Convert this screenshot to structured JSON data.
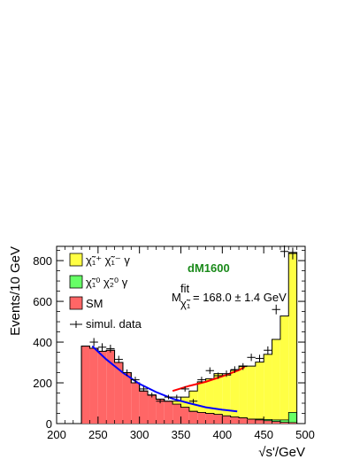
{
  "chart_data": {
    "type": "histogram",
    "xlabel": "√s'/GeV",
    "ylabel": "Events/10 GeV",
    "xlim": [
      200,
      500
    ],
    "ylim": [
      0,
      870
    ],
    "x_ticks": [
      200,
      250,
      300,
      350,
      400,
      450,
      500
    ],
    "y_ticks": [
      0,
      200,
      400,
      600,
      800
    ],
    "bin_width": 10,
    "bin_edges_start": 200,
    "series": [
      {
        "name": "SM",
        "key": "sm",
        "color": "#ff6666",
        "values": [
          0,
          0,
          0,
          380,
          370,
          355,
          360,
          300,
          250,
          200,
          160,
          140,
          120,
          110,
          95,
          80,
          60,
          55,
          50,
          45,
          38,
          32,
          28,
          22,
          18,
          14,
          10,
          6,
          5,
          0
        ]
      },
      {
        "name": "χ̃₁⁰ χ̃₂⁰ γ",
        "key": "chi12",
        "color": "#66ff66",
        "values": [
          0,
          0,
          0,
          0,
          0,
          0,
          0,
          0,
          0,
          0,
          0,
          0,
          0,
          0,
          0,
          0,
          0,
          0,
          0,
          0,
          0,
          0,
          0,
          0,
          4,
          6,
          8,
          12,
          50,
          0
        ]
      },
      {
        "name": "χ̃₁⁺ χ̃₁⁻ γ",
        "key": "chipm",
        "color": "#ffff44",
        "values": [
          0,
          0,
          0,
          0,
          0,
          0,
          0,
          0,
          0,
          0,
          0,
          0,
          0,
          0,
          15,
          50,
          100,
          150,
          170,
          200,
          200,
          230,
          255,
          260,
          280,
          320,
          395,
          510,
          785,
          0
        ]
      }
    ],
    "data_points": {
      "name": "simul. data",
      "x": [
        245,
        255,
        265,
        275,
        285,
        295,
        305,
        315,
        325,
        335,
        345,
        355,
        365,
        375,
        385,
        395,
        405,
        415,
        425,
        435,
        445,
        455,
        465,
        475,
        485
      ],
      "y": [
        400,
        375,
        368,
        315,
        250,
        215,
        170,
        140,
        110,
        130,
        130,
        170,
        110,
        215,
        260,
        235,
        245,
        265,
        280,
        325,
        320,
        360,
        560,
        845,
        835
      ]
    },
    "fit_curves": [
      {
        "color": "#0000ff",
        "x": [
          243,
          260,
          280,
          300,
          320,
          340,
          360,
          380,
          400,
          418
        ],
        "y": [
          380,
          315,
          250,
          195,
          155,
          122,
          100,
          80,
          68,
          60
        ]
      },
      {
        "color": "#ff0000",
        "x": [
          340,
          360,
          380,
          400,
          420,
          427
        ],
        "y": [
          160,
          185,
          205,
          232,
          262,
          278
        ]
      }
    ],
    "annotations": {
      "model": "dM1600",
      "fit_text": "= 168.0 ± 1.4 GeV"
    },
    "legend_position": "top-left",
    "colors": {
      "black": "#000000",
      "white": "#ffffff"
    }
  }
}
